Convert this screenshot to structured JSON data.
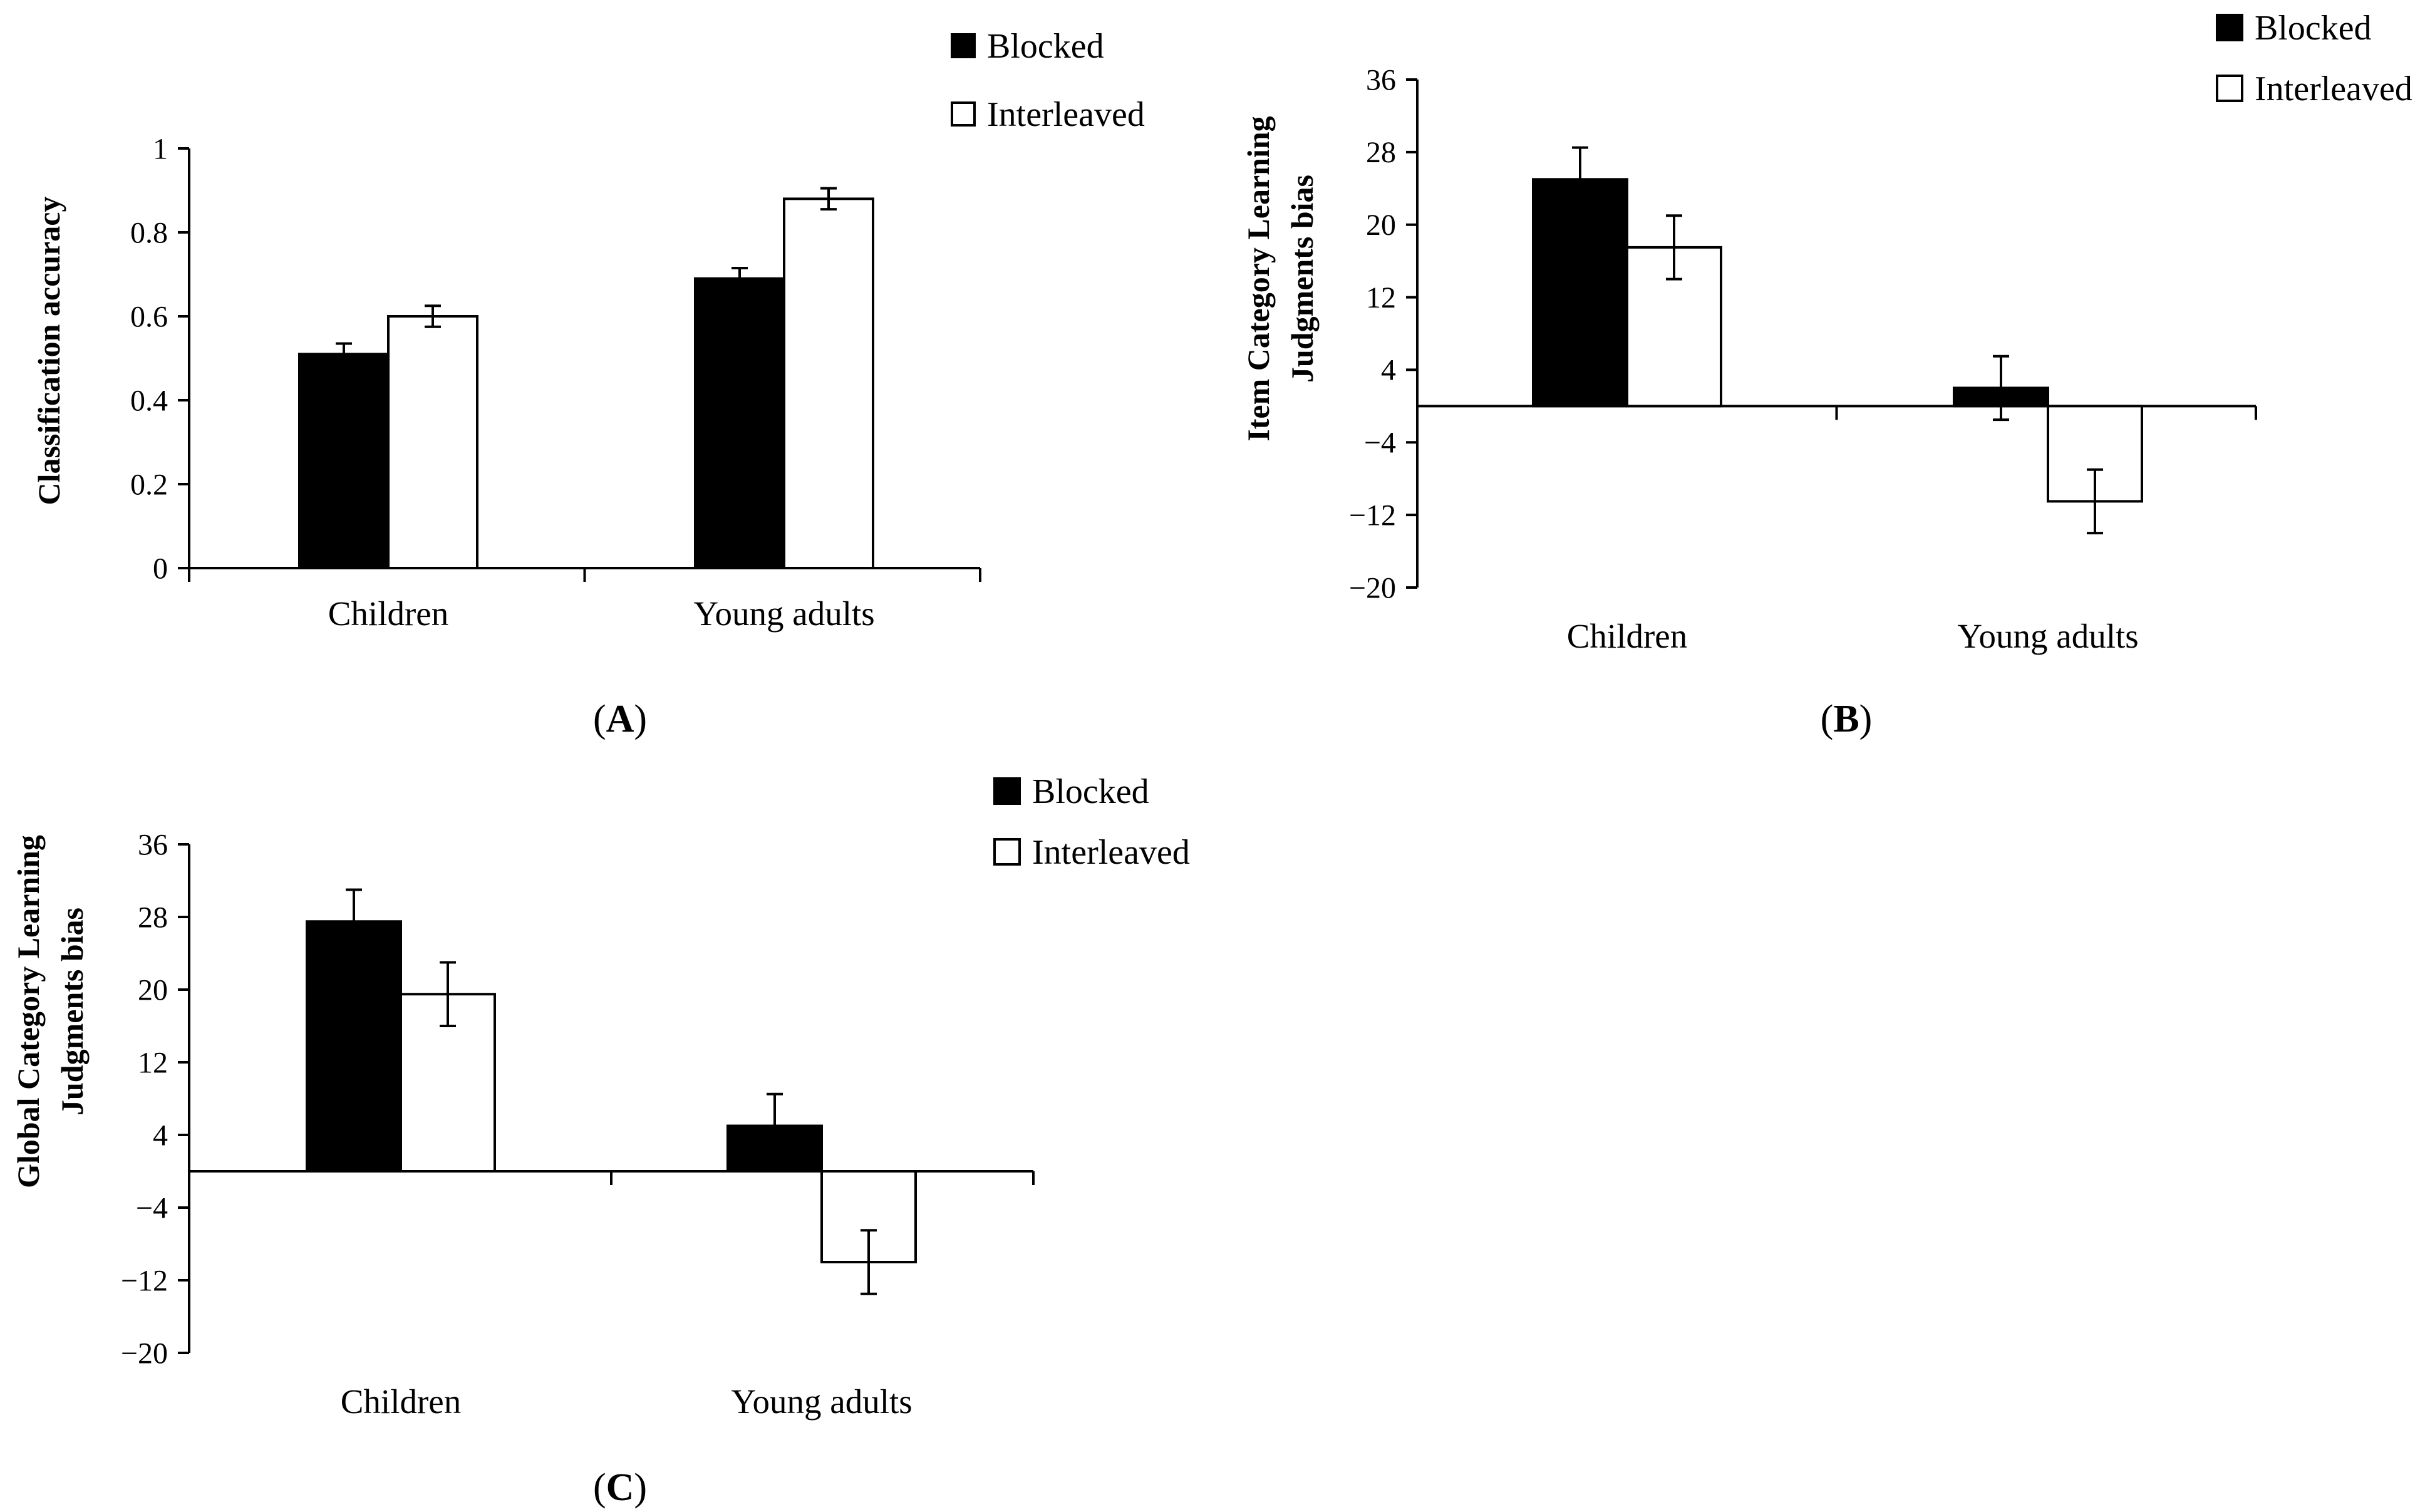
{
  "figure": {
    "panel_letters": [
      "A",
      "B",
      "C"
    ]
  },
  "chart_data": [
    {
      "id": "A",
      "type": "bar",
      "categories": [
        "Children",
        "Young adults"
      ],
      "series": [
        {
          "name": "Blocked",
          "values": [
            0.51,
            0.69
          ],
          "errors": [
            0.025,
            0.025
          ],
          "color": "#000000"
        },
        {
          "name": "Interleaved",
          "values": [
            0.6,
            0.88
          ],
          "errors": [
            0.025,
            0.025
          ],
          "color": "#ffffff"
        }
      ],
      "title": "",
      "xlabel": "",
      "ylabel": "Classification accuracy",
      "ylim": [
        0,
        1
      ],
      "yticks": [
        0,
        0.2,
        0.4,
        0.6,
        0.8,
        1
      ],
      "ytick_labels": [
        "0",
        "0.2",
        "0.4",
        "0.6",
        "0.8",
        "1"
      ],
      "legend": "top-right",
      "grid": false,
      "panel_label": "A"
    },
    {
      "id": "B",
      "type": "bar",
      "categories": [
        "Children",
        "Young adults"
      ],
      "series": [
        {
          "name": "Blocked",
          "values": [
            25,
            2
          ],
          "errors": [
            3.5,
            3.5
          ],
          "color": "#000000"
        },
        {
          "name": "Interleaved",
          "values": [
            17.5,
            -10.5
          ],
          "errors": [
            3.5,
            3.5
          ],
          "color": "#ffffff"
        }
      ],
      "title": "",
      "xlabel": "",
      "ylabel": "Item Category Learning Judgments bias",
      "ylabel_lines": [
        "Item Category Learning",
        "Judgments bias"
      ],
      "ylim": [
        -20,
        36
      ],
      "yticks": [
        -20,
        -12,
        -4,
        4,
        12,
        20,
        28,
        36
      ],
      "ytick_labels": [
        "−20",
        "−12",
        "−4",
        "4",
        "12",
        "20",
        "28",
        "36"
      ],
      "legend": "top-right",
      "grid": false,
      "panel_label": "B"
    },
    {
      "id": "C",
      "type": "bar",
      "categories": [
        "Children",
        "Young adults"
      ],
      "series": [
        {
          "name": "Blocked",
          "values": [
            27.5,
            5
          ],
          "errors": [
            3.5,
            3.5
          ],
          "color": "#000000"
        },
        {
          "name": "Interleaved",
          "values": [
            19.5,
            -10
          ],
          "errors": [
            3.5,
            3.5
          ],
          "color": "#ffffff"
        }
      ],
      "title": "",
      "xlabel": "",
      "ylabel": "Global Category Learning Judgments bias",
      "ylabel_lines": [
        "Global Category Learning",
        "Judgments bias"
      ],
      "ylim": [
        -20,
        36
      ],
      "yticks": [
        -20,
        -12,
        -4,
        4,
        12,
        20,
        28,
        36
      ],
      "ytick_labels": [
        "−20",
        "−12",
        "−4",
        "4",
        "12",
        "20",
        "28",
        "36"
      ],
      "legend": "top-right",
      "grid": false,
      "panel_label": "C"
    }
  ]
}
